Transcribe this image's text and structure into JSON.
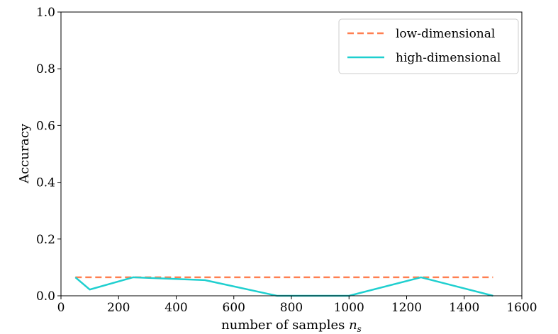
{
  "chart_data": {
    "type": "line",
    "title": "",
    "xlabel": "number of samples",
    "xlabel_symbol": "n",
    "xlabel_subscript": "s",
    "ylabel": "Accuracy",
    "xlim": [
      0,
      1600
    ],
    "ylim": [
      0.0,
      1.0
    ],
    "xticks": [
      0,
      200,
      400,
      600,
      800,
      1000,
      1200,
      1400,
      1600
    ],
    "xtick_labels": [
      "0",
      "200",
      "400",
      "600",
      "800",
      "1000",
      "1200",
      "1400",
      "1600"
    ],
    "yticks": [
      0.0,
      0.2,
      0.4,
      0.6,
      0.8,
      1.0
    ],
    "ytick_labels": [
      "0.0",
      "0.2",
      "0.4",
      "0.6",
      "0.8",
      "1.0"
    ],
    "grid": false,
    "legend_position": "top-right",
    "series": [
      {
        "name": "low-dimensional",
        "color": "#ff7f50",
        "style": "dashed",
        "x": [
          50,
          1500
        ],
        "y": [
          0.065,
          0.065
        ]
      },
      {
        "name": "high-dimensional",
        "color": "#1fcfcf",
        "style": "solid",
        "x": [
          50,
          100,
          250,
          500,
          750,
          1000,
          1250,
          1500
        ],
        "y": [
          0.065,
          0.022,
          0.065,
          0.055,
          0.0,
          0.0,
          0.065,
          0.0
        ]
      }
    ]
  }
}
